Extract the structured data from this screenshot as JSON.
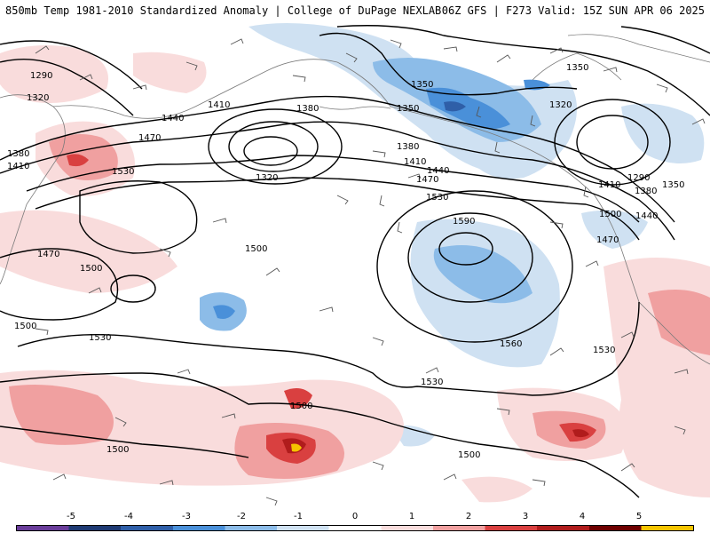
{
  "header": {
    "title": "850mb Temp 1981-2010 Standardized Anomaly | College of DuPage NEXLAB",
    "run_info": "06Z GFS | F273 Valid: 15Z SUN APR 06 2025"
  },
  "map": {
    "contour_labels": [
      "1290",
      "1320",
      "1380",
      "1410",
      "1440",
      "1470",
      "1530",
      "1470",
      "1500",
      "1500",
      "1380",
      "1410",
      "1320",
      "1500",
      "1350",
      "1350",
      "1380",
      "1410",
      "1440",
      "1470",
      "1530",
      "1590",
      "1560",
      "1530",
      "1530",
      "1500",
      "1500",
      "1500",
      "1350",
      "1320",
      "1290",
      "1380",
      "1350",
      "1410",
      "1440",
      "1500",
      "1470",
      "1530"
    ]
  },
  "colorbar": {
    "ticks": [
      "-5",
      "-4",
      "-3",
      "-2",
      "-1",
      "0",
      "1",
      "2",
      "3",
      "4",
      "5"
    ],
    "colors": [
      "#6a3d9a",
      "#1f3a73",
      "#2f5fa8",
      "#4a90d9",
      "#8cbce8",
      "#cfe1f2",
      "#ffffff",
      "#f9dcdc",
      "#f0a0a0",
      "#d94040",
      "#b01c1c",
      "#6e0000",
      "#f5c400"
    ]
  }
}
